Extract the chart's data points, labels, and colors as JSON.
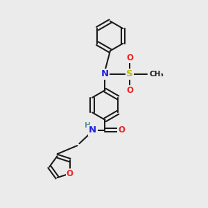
{
  "background_color": "#ebebeb",
  "bond_color": "#1a1a1a",
  "N_color": "#2222dd",
  "O_color": "#ee2222",
  "S_color": "#bbbb00",
  "font_size_atom": 8.0,
  "line_width": 1.5,
  "figsize": [
    3.0,
    3.0
  ],
  "dpi": 100,
  "xlim": [
    0,
    10
  ],
  "ylim": [
    0,
    10
  ]
}
